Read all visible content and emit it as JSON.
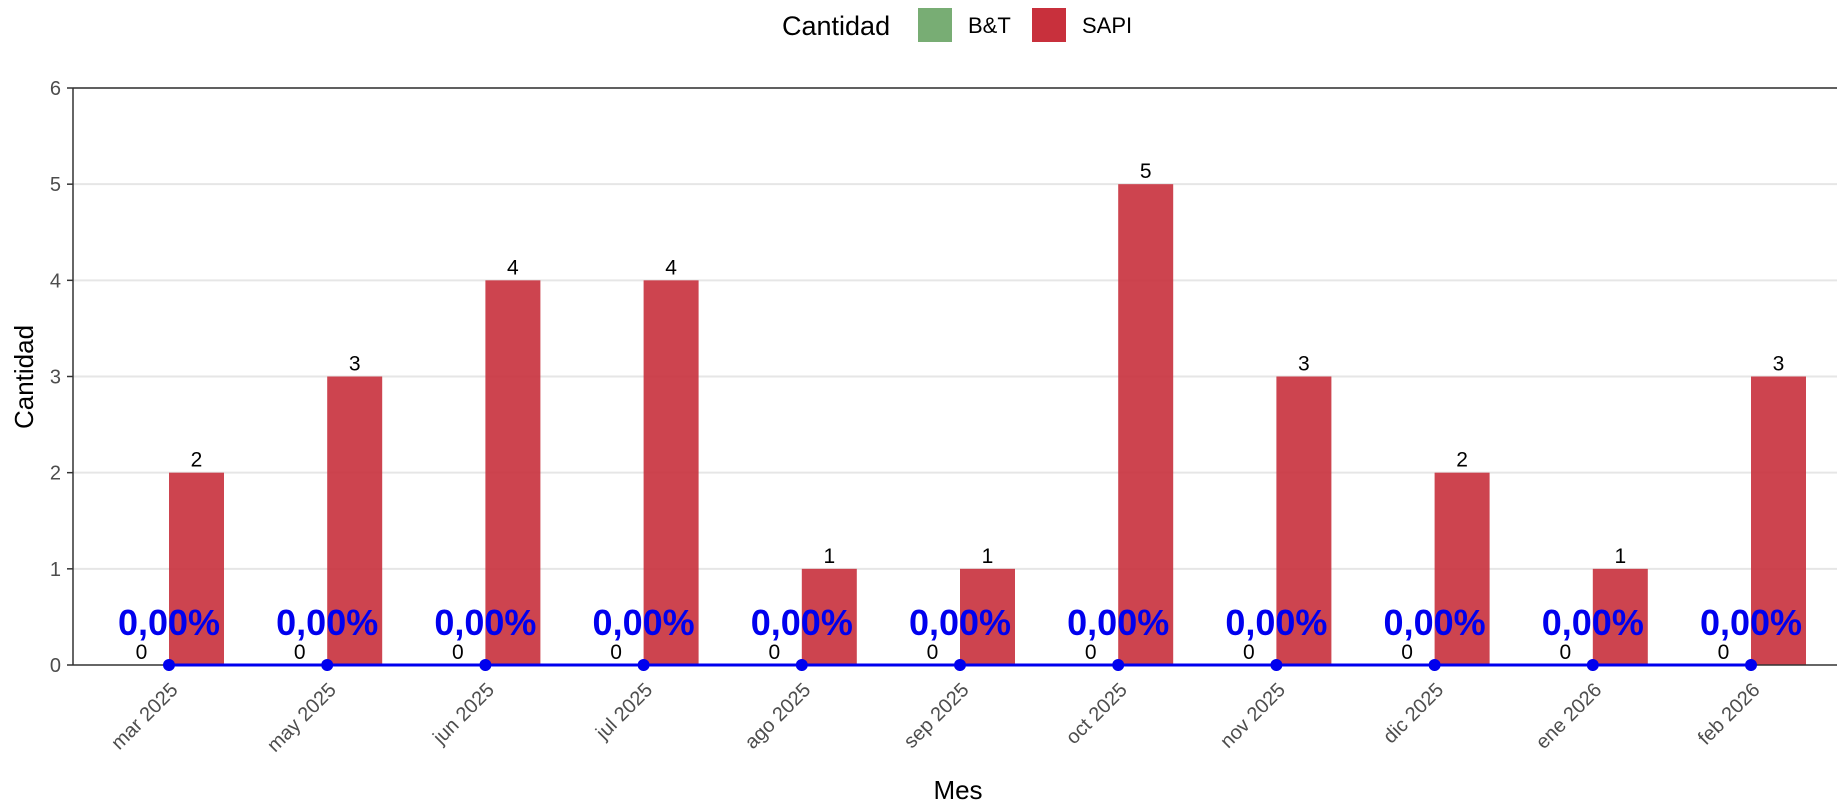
{
  "chart_data": {
    "type": "bar",
    "xlabel": "Mes",
    "ylabel": "Cantidad",
    "ylim": [
      0,
      6
    ],
    "yticks": [
      "0",
      "1",
      "2",
      "3",
      "4",
      "5",
      "6"
    ],
    "grid": "horizontal major",
    "legend": {
      "title": "Cantidad",
      "position": "top",
      "entries": [
        {
          "name": "B&T",
          "color": "#78ad74"
        },
        {
          "name": "SAPI",
          "color": "#c8303c"
        }
      ]
    },
    "categories": [
      "mar 2025",
      "may 2025",
      "jun 2025",
      "jul 2025",
      "ago 2025",
      "sep 2025",
      "oct 2025",
      "nov 2025",
      "dic 2025",
      "ene 2026",
      "feb 2026"
    ],
    "series": [
      {
        "name": "B&T",
        "color": "#78ad74",
        "values": [
          0,
          0,
          0,
          0,
          0,
          0,
          0,
          0,
          0,
          0,
          0
        ],
        "labels": [
          "0",
          "0",
          "0",
          "0",
          "0",
          "0",
          "0",
          "0",
          "0",
          "0",
          "0"
        ]
      },
      {
        "name": "SAPI",
        "color": "#c8303c",
        "values": [
          2,
          3,
          4,
          4,
          1,
          1,
          5,
          3,
          2,
          1,
          3
        ],
        "labels": [
          "2",
          "3",
          "4",
          "4",
          "1",
          "1",
          "5",
          "3",
          "2",
          "1",
          "3"
        ]
      }
    ],
    "line": {
      "color": "#0000ee",
      "values": [
        0,
        0,
        0,
        0,
        0,
        0,
        0,
        0,
        0,
        0,
        0
      ],
      "labels": [
        "0,00%",
        "0,00%",
        "0,00%",
        "0,00%",
        "0,00%",
        "0,00%",
        "0,00%",
        "0,00%",
        "0,00%",
        "0,00%",
        "0,00%"
      ]
    }
  }
}
